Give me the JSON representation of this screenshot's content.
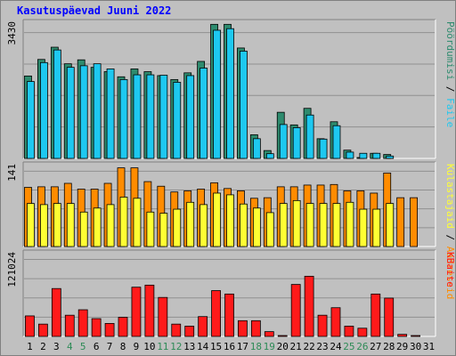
{
  "chart_data": {
    "title": "Kasutuspäevad Juuni 2022",
    "type": "bar",
    "categories": [
      "1",
      "2",
      "3",
      "4",
      "5",
      "6",
      "7",
      "8",
      "9",
      "10",
      "11",
      "12",
      "13",
      "14",
      "15",
      "16",
      "17",
      "18",
      "19",
      "20",
      "21",
      "22",
      "23",
      "24",
      "25",
      "26",
      "27",
      "28",
      "29",
      "30",
      "31"
    ],
    "weekend_days": [
      "4",
      "5",
      "11",
      "12",
      "18",
      "19",
      "25",
      "26"
    ],
    "panels": [
      {
        "name": "hits_files",
        "y_max_label": "3430",
        "ymax": 3430,
        "legend": [
          "Pöördumisi",
          "Faile"
        ],
        "series": [
          {
            "name": "Pöördumisi",
            "color": "#2e8b6e",
            "values": [
              2090,
              2510,
              2820,
              2400,
              2500,
              2310,
              2200,
              2070,
              2270,
              2200,
              2100,
              2000,
              2170,
              2460,
              3400,
              3400,
              2800,
              600,
              200,
              1170,
              850,
              1270,
              500,
              930,
              210,
              20,
              130,
              100,
              0,
              0,
              0
            ]
          },
          {
            "name": "Faile",
            "color": "#1ec8f0",
            "values": [
              1950,
              2430,
              2750,
              2310,
              2350,
              2400,
              2270,
              2000,
              2120,
              2120,
              2110,
              1930,
              2100,
              2290,
              3250,
              3290,
              2720,
              500,
              120,
              860,
              780,
              1100,
              490,
              830,
              160,
              130,
              130,
              60,
              0,
              0,
              0
            ]
          }
        ]
      },
      {
        "name": "sites_visits",
        "y_max_label": "141",
        "ymax": 141,
        "legend": [
          "Külastajaid",
          "Aadressid"
        ],
        "series": [
          {
            "name": "Aadressid",
            "color": "#ff8c00",
            "values": [
              103,
              104,
              104,
              110,
              100,
              100,
              110,
              137,
              137,
              113,
              105,
              95,
              97,
              100,
              111,
              101,
              97,
              84,
              85,
              104,
              104,
              107,
              107,
              108,
              97,
              97,
              93,
              128,
              85,
              85,
              0
            ]
          },
          {
            "name": "Külastajaid",
            "color": "#ffff33",
            "values": [
              75,
              73,
              75,
              75,
              60,
              67,
              73,
              86,
              84,
              60,
              58,
              65,
              77,
              73,
              93,
              90,
              74,
              67,
              59,
              75,
              80,
              75,
              75,
              75,
              77,
              65,
              65,
              75,
              0,
              0,
              0
            ]
          }
        ]
      },
      {
        "name": "kbytes",
        "y_max_label": "121024",
        "ymax": 121024,
        "legend": [
          "KBaite"
        ],
        "series": [
          {
            "name": "KBaite",
            "color": "#ff1a1a",
            "values": [
              30000,
              18000,
              70000,
              31000,
              39000,
              26000,
              19000,
              28000,
              72000,
              75000,
              57000,
              18000,
              15000,
              29000,
              67000,
              62000,
              23000,
              23000,
              7000,
              1000,
              76000,
              88000,
              31000,
              42000,
              15000,
              12000,
              62000,
              56000,
              3000,
              1000,
              0
            ]
          }
        ]
      }
    ]
  },
  "colors": {
    "background": "#c0c0c0",
    "plot_bg": "#c0c0c0",
    "title": "#0000ff",
    "weekday_label": "#000000",
    "weekend_label": "#2e8b57"
  }
}
